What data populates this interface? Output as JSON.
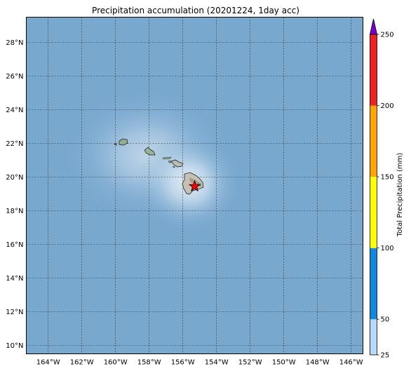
{
  "title": "Precipitation accumulation (20201224, 1day acc)",
  "map": {
    "lon_range": [
      -165.3,
      -145.3
    ],
    "lat_range": [
      9.5,
      29.5
    ],
    "lon_ticks": [
      -164,
      -162,
      -160,
      -158,
      -156,
      -154,
      -152,
      -150,
      -148,
      -146
    ],
    "lon_tick_labels": [
      "164°W",
      "162°W",
      "160°W",
      "158°W",
      "156°W",
      "154°W",
      "152°W",
      "150°W",
      "148°W",
      "146°W"
    ],
    "lat_ticks": [
      10,
      12,
      14,
      16,
      18,
      20,
      22,
      24,
      26,
      28
    ],
    "lat_tick_labels": [
      "10°N",
      "12°N",
      "14°N",
      "16°N",
      "18°N",
      "20°N",
      "22°N",
      "24°N",
      "26°N",
      "28°N"
    ],
    "gridlines": true,
    "ocean_color": "#79a8cf",
    "marker": {
      "symbol": "star",
      "color": "#ff0000",
      "lon": -155.3,
      "lat": 19.45
    }
  },
  "colorbar": {
    "label": "Total Precipitation (mm)",
    "min": 25,
    "max": 250,
    "extend": "max",
    "extend_color": "#7a00c8",
    "tick_values": [
      25,
      50,
      100,
      150,
      200,
      250
    ],
    "tick_labels": [
      "25",
      "50",
      "100",
      "150",
      "200",
      "250"
    ],
    "bands": [
      {
        "from": 25,
        "to": 50,
        "color": "#b8d9ff"
      },
      {
        "from": 50,
        "to": 100,
        "color": "#1188dd"
      },
      {
        "from": 100,
        "to": 150,
        "color": "#ffff00"
      },
      {
        "from": 150,
        "to": 200,
        "color": "#ffa500"
      },
      {
        "from": 200,
        "to": 250,
        "color": "#ee2222"
      }
    ]
  }
}
